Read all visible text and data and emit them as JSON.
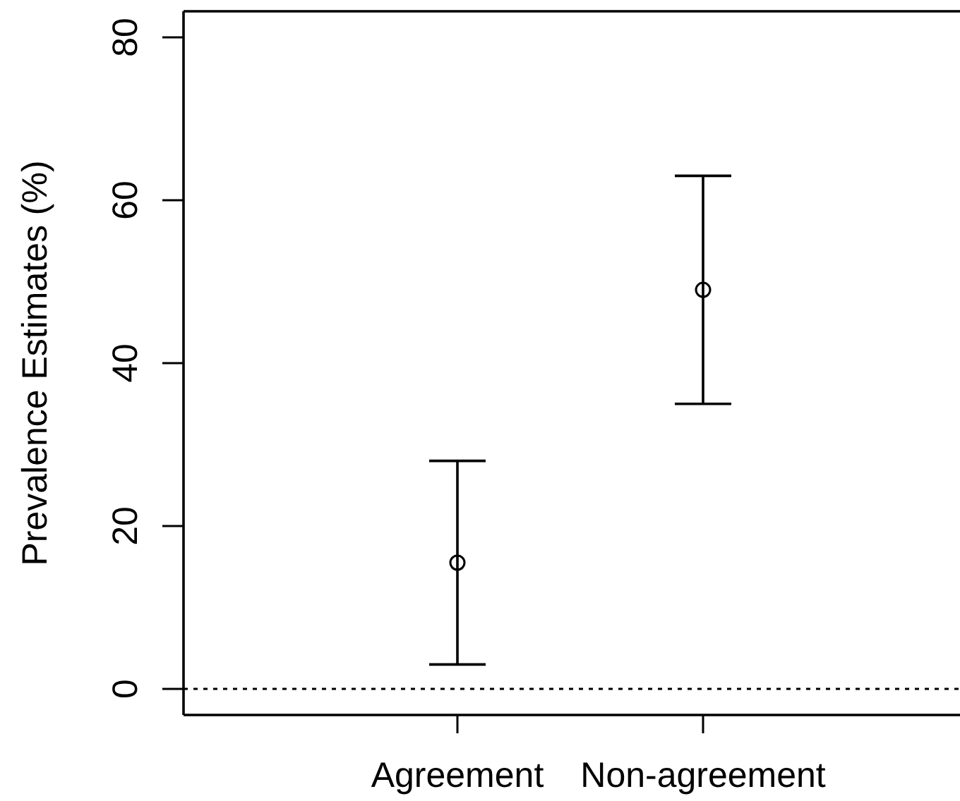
{
  "chart_data": {
    "type": "scatter",
    "ylabel": "Prevalence Estimates (%)",
    "categories": [
      "Agreement",
      "Non-agreement"
    ],
    "values": [
      15.5,
      49
    ],
    "errors": [
      [
        3,
        28
      ],
      [
        35,
        63
      ]
    ],
    "color": "#000000",
    "marker": "circle",
    "ylim": [
      -3.2,
      83.2
    ],
    "yticks": [
      0,
      20,
      40,
      60,
      80
    ],
    "ref_lines": [
      {
        "axis": "y",
        "value": 0,
        "color": "#000000",
        "line_style": "dotted"
      }
    ]
  }
}
